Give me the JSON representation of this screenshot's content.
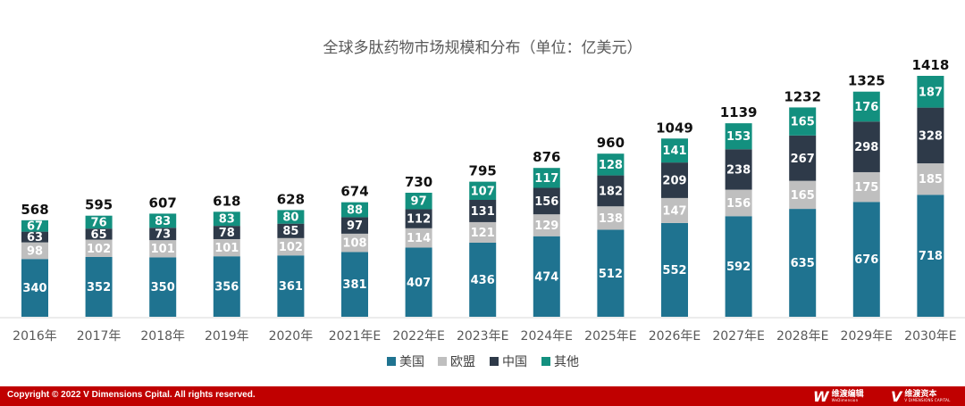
{
  "chart_data": {
    "type": "bar",
    "stacked": true,
    "title": "全球多肽药物市场规模和分布（单位：亿美元）",
    "categories": [
      "2016年",
      "2017年",
      "2018年",
      "2019年",
      "2020年",
      "2021年E",
      "2022年E",
      "2023年E",
      "2024年E",
      "2025年E",
      "2026年E",
      "2027年E",
      "2028年E",
      "2029年E",
      "2030年E"
    ],
    "series": [
      {
        "name": "美国",
        "color": "#1f7390",
        "values": [
          340,
          352,
          350,
          356,
          361,
          381,
          407,
          436,
          474,
          512,
          552,
          592,
          635,
          676,
          718
        ]
      },
      {
        "name": "欧盟",
        "color": "#bfbfbf",
        "values": [
          98,
          102,
          101,
          101,
          102,
          108,
          114,
          121,
          129,
          138,
          147,
          156,
          165,
          175,
          185
        ]
      },
      {
        "name": "中国",
        "color": "#2e3a49",
        "values": [
          63,
          65,
          73,
          78,
          85,
          97,
          112,
          131,
          156,
          182,
          209,
          238,
          267,
          298,
          328
        ]
      },
      {
        "name": "其他",
        "color": "#13907f",
        "values": [
          67,
          76,
          83,
          83,
          80,
          88,
          97,
          107,
          117,
          128,
          141,
          153,
          165,
          176,
          187
        ]
      }
    ],
    "totals": [
      568,
      595,
      607,
      618,
      628,
      674,
      730,
      795,
      876,
      960,
      1049,
      1139,
      1232,
      1325,
      1418
    ],
    "ylim": [
      0,
      1418
    ],
    "grid": false,
    "legend_position": "bottom"
  },
  "footer": {
    "copyright": "Copyright © 2022 V Dimensions Cpital. All rights reserved.",
    "logo1_cn": "维渡编辑",
    "logo1_en": "WeDimension",
    "logo2_cn": "维渡资本",
    "logo2_en": "V DIMENSIONS CAPITAL"
  }
}
